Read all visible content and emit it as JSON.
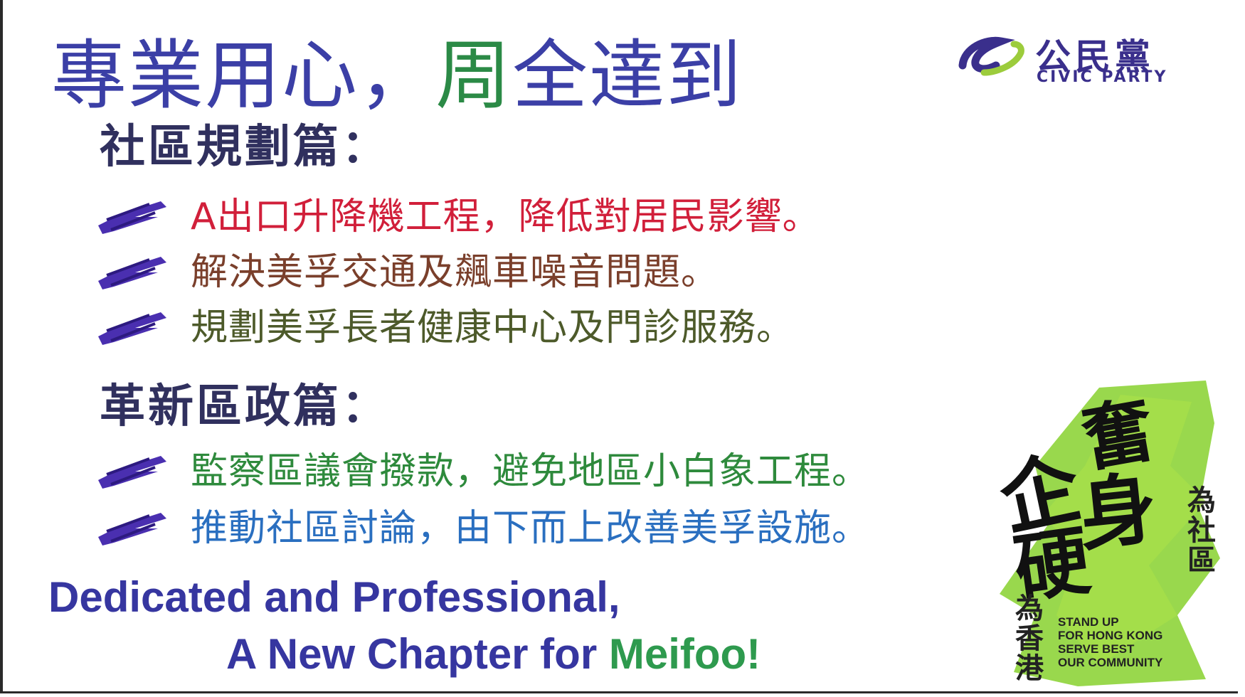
{
  "headline": {
    "part1": "專業用心，",
    "part2": "周",
    "part3": "全達到"
  },
  "logo": {
    "chinese": "公民黨",
    "english": "CIVIC PARTY"
  },
  "sections": [
    {
      "title": "社區規劃篇：",
      "items": [
        {
          "text": "A出口升降機工程，降低對居民影響。",
          "color": "#d11f3a"
        },
        {
          "text": "解決美孚交通及飆車噪音問題。",
          "color": "#7a3f2b"
        },
        {
          "text": "規劃美孚長者健康中心及門診服務。",
          "color": "#4d5a2a"
        }
      ]
    },
    {
      "title": "革新區政篇：",
      "items": [
        {
          "text": "監察區議會撥款，避免地區小白象工程。",
          "color": "#2e8a3c"
        },
        {
          "text": "推動社區討論，由下而上改善美孚設施。",
          "color": "#2a6fc0"
        }
      ]
    }
  ],
  "slogan": {
    "line1": "Dedicated and Professional,",
    "line2_main": "A New Chapter for ",
    "line2_green": "Meifoo!"
  },
  "stamp": {
    "big1": "企",
    "big2": "硬",
    "big3": "奮",
    "big4": "身",
    "left_vertical": [
      "為",
      "香",
      "港"
    ],
    "right_vertical": [
      "為",
      "社",
      "區"
    ],
    "english": [
      "STAND UP",
      "FOR HONG KONG",
      "SERVE BEST",
      "OUR COMMUNITY"
    ]
  },
  "colors": {
    "headline_blue": "#3b3fa6",
    "headline_green": "#2b8a46",
    "brush_purple": "#4a2fb0",
    "stamp_green": "#8ed43a"
  }
}
